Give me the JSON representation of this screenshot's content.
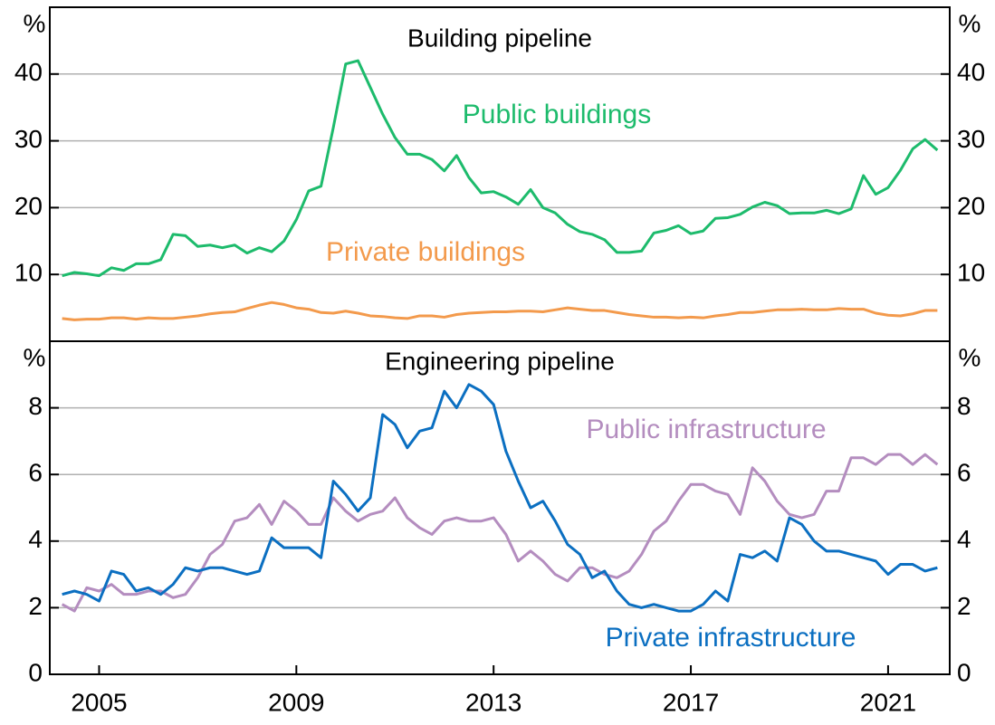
{
  "chart_data": [
    {
      "type": "line",
      "title": "Building pipeline",
      "y_label": "%",
      "x": [
        2004.25,
        2004.5,
        2004.75,
        2005.0,
        2005.25,
        2005.5,
        2005.75,
        2006.0,
        2006.25,
        2006.5,
        2006.75,
        2007.0,
        2007.25,
        2007.5,
        2007.75,
        2008.0,
        2008.25,
        2008.5,
        2008.75,
        2009.0,
        2009.25,
        2009.5,
        2009.75,
        2010.0,
        2010.25,
        2010.5,
        2010.75,
        2011.0,
        2011.25,
        2011.5,
        2011.75,
        2012.0,
        2012.25,
        2012.5,
        2012.75,
        2013.0,
        2013.25,
        2013.5,
        2013.75,
        2014.0,
        2014.25,
        2014.5,
        2014.75,
        2015.0,
        2015.25,
        2015.5,
        2015.75,
        2016.0,
        2016.25,
        2016.5,
        2016.75,
        2017.0,
        2017.25,
        2017.5,
        2017.75,
        2018.0,
        2018.25,
        2018.5,
        2018.75,
        2019.0,
        2019.25,
        2019.5,
        2019.75,
        2020.0,
        2020.25,
        2020.5,
        2020.75,
        2021.0,
        2021.25,
        2021.5,
        2021.75,
        2022.0
      ],
      "series": [
        {
          "name": "Public buildings",
          "color": "#1dbb6c",
          "values": [
            9.8,
            10.3,
            10.1,
            9.8,
            11.0,
            10.6,
            11.6,
            11.6,
            12.2,
            16.0,
            15.8,
            14.2,
            14.4,
            14.0,
            14.4,
            13.2,
            14.0,
            13.4,
            15.0,
            18.2,
            22.5,
            23.2,
            32,
            41.5,
            42,
            38,
            34,
            30.5,
            28,
            28,
            27.2,
            25.5,
            27.8,
            24.5,
            22.2,
            22.4,
            21.6,
            20.5,
            22.7,
            20.0,
            19.2,
            17.5,
            16.4,
            16.0,
            15.2,
            13.3,
            13.3,
            13.5,
            16.2,
            16.6,
            17.3,
            16.1,
            16.5,
            18.4,
            18.5,
            19.0,
            20.1,
            20.8,
            20.3,
            19.1,
            19.2,
            19.2,
            19.6,
            19.1,
            19.8,
            24.8,
            22.0,
            23.0,
            25.6,
            28.8,
            30.2,
            28.6
          ]
        },
        {
          "name": "Private buildings",
          "color": "#f39a4c",
          "values": [
            3.4,
            3.2,
            3.3,
            3.3,
            3.5,
            3.5,
            3.3,
            3.5,
            3.4,
            3.4,
            3.6,
            3.8,
            4.1,
            4.3,
            4.4,
            4.9,
            5.4,
            5.8,
            5.5,
            5.0,
            4.8,
            4.3,
            4.2,
            4.5,
            4.2,
            3.8,
            3.7,
            3.5,
            3.4,
            3.8,
            3.8,
            3.6,
            4.0,
            4.2,
            4.3,
            4.4,
            4.4,
            4.5,
            4.5,
            4.4,
            4.7,
            5.0,
            4.8,
            4.6,
            4.6,
            4.3,
            4.0,
            3.8,
            3.6,
            3.6,
            3.5,
            3.6,
            3.5,
            3.8,
            4.0,
            4.3,
            4.3,
            4.5,
            4.7,
            4.7,
            4.8,
            4.7,
            4.7,
            4.9,
            4.8,
            4.8,
            4.2,
            3.9,
            3.8,
            4.1,
            4.6,
            4.6
          ]
        }
      ],
      "xlim": [
        2004.0,
        2022.25
      ],
      "ylim": [
        0,
        50
      ],
      "yticks": [
        10,
        20,
        30,
        40
      ],
      "grid": true
    },
    {
      "type": "line",
      "title": "Engineering pipeline",
      "y_label": "%",
      "x": [
        2004.25,
        2004.5,
        2004.75,
        2005.0,
        2005.25,
        2005.5,
        2005.75,
        2006.0,
        2006.25,
        2006.5,
        2006.75,
        2007.0,
        2007.25,
        2007.5,
        2007.75,
        2008.0,
        2008.25,
        2008.5,
        2008.75,
        2009.0,
        2009.25,
        2009.5,
        2009.75,
        2010.0,
        2010.25,
        2010.5,
        2010.75,
        2011.0,
        2011.25,
        2011.5,
        2011.75,
        2012.0,
        2012.25,
        2012.5,
        2012.75,
        2013.0,
        2013.25,
        2013.5,
        2013.75,
        2014.0,
        2014.25,
        2014.5,
        2014.75,
        2015.0,
        2015.25,
        2015.5,
        2015.75,
        2016.0,
        2016.25,
        2016.5,
        2016.75,
        2017.0,
        2017.25,
        2017.5,
        2017.75,
        2018.0,
        2018.25,
        2018.5,
        2018.75,
        2019.0,
        2019.25,
        2019.5,
        2019.75,
        2020.0,
        2020.25,
        2020.5,
        2020.75,
        2021.0,
        2021.25,
        2021.5,
        2021.75,
        2022.0
      ],
      "series": [
        {
          "name": "Public infrastructure",
          "color": "#b48dbf",
          "values": [
            2.1,
            1.9,
            2.6,
            2.5,
            2.7,
            2.4,
            2.4,
            2.5,
            2.5,
            2.3,
            2.4,
            2.9,
            3.6,
            3.9,
            4.6,
            4.7,
            5.1,
            4.5,
            5.2,
            4.9,
            4.5,
            4.5,
            5.3,
            4.9,
            4.6,
            4.8,
            4.9,
            5.3,
            4.7,
            4.4,
            4.2,
            4.6,
            4.7,
            4.6,
            4.6,
            4.7,
            4.2,
            3.4,
            3.7,
            3.4,
            3.0,
            2.8,
            3.2,
            3.2,
            3.0,
            2.9,
            3.1,
            3.6,
            4.3,
            4.6,
            5.2,
            5.7,
            5.7,
            5.5,
            5.4,
            4.8,
            6.2,
            5.8,
            5.2,
            4.8,
            4.7,
            4.8,
            5.5,
            5.5,
            6.5,
            6.5,
            6.3,
            6.6,
            6.6,
            6.3,
            6.6,
            6.3
          ]
        },
        {
          "name": "Private infrastructure",
          "color": "#0b6fc1",
          "values": [
            2.4,
            2.5,
            2.4,
            2.2,
            3.1,
            3.0,
            2.5,
            2.6,
            2.4,
            2.7,
            3.2,
            3.1,
            3.2,
            3.2,
            3.1,
            3.0,
            3.1,
            4.1,
            3.8,
            3.8,
            3.8,
            3.5,
            5.8,
            5.4,
            4.9,
            5.3,
            7.8,
            7.5,
            6.8,
            7.3,
            7.4,
            8.5,
            8.0,
            8.7,
            8.5,
            8.1,
            6.7,
            5.8,
            5.0,
            5.2,
            4.6,
            3.9,
            3.6,
            2.9,
            3.1,
            2.5,
            2.1,
            2.0,
            2.1,
            2.0,
            1.9,
            1.9,
            2.1,
            2.5,
            2.2,
            3.6,
            3.5,
            3.7,
            3.4,
            4.7,
            4.5,
            4.0,
            3.7,
            3.7,
            3.6,
            3.5,
            3.4,
            3.0,
            3.3,
            3.3,
            3.1,
            3.2
          ]
        }
      ],
      "xlim": [
        2004.0,
        2022.25
      ],
      "xticks": [
        2005,
        2009,
        2013,
        2017,
        2021
      ],
      "ylim": [
        0,
        10
      ],
      "yticks": [
        0,
        2,
        4,
        6,
        8
      ],
      "grid": true
    }
  ]
}
